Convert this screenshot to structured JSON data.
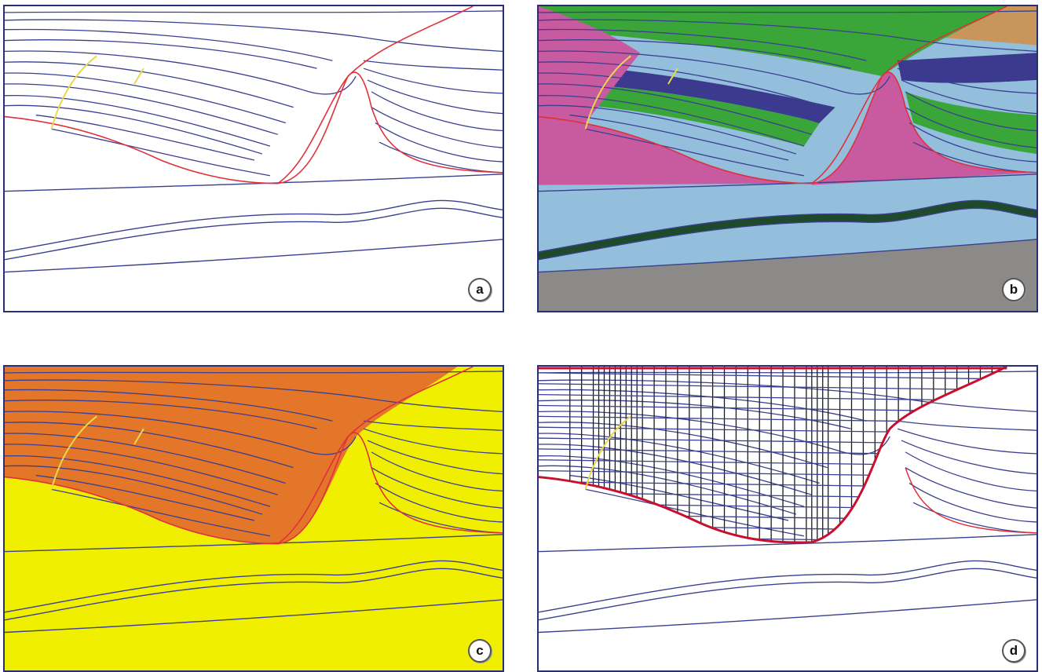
{
  "panels": [
    {
      "id": "a",
      "label": "a"
    },
    {
      "id": "b",
      "label": "b"
    },
    {
      "id": "c",
      "label": "c"
    },
    {
      "id": "d",
      "label": "d"
    }
  ],
  "colors": {
    "frame": "#2a2f73",
    "horizon": "#3a3f8f",
    "fault": "#e0303a",
    "fault_trace": "#e8d84a",
    "magenta": "#c85aa0",
    "green": "#3aa63a",
    "light_blue": "#93bedc",
    "dark_blue": "#3b3a8e",
    "tan": "#c8965a",
    "dark_green": "#1e4a2a",
    "gray": "#8c8a88",
    "orange": "#e4762a",
    "yellow": "#f1ef00",
    "grid": "#1a1a1a",
    "boundary": "#c8102e"
  }
}
